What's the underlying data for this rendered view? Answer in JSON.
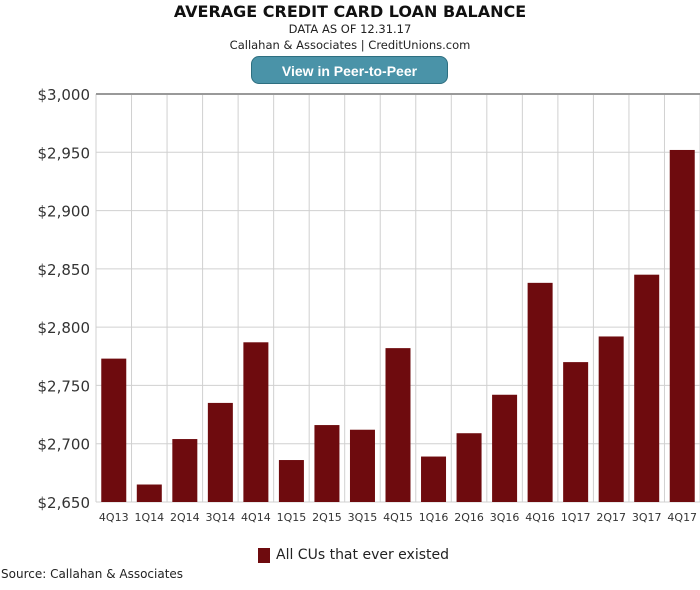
{
  "header": {
    "title": "AVERAGE CREDIT CARD LOAN BALANCE",
    "date_line": "DATA AS OF 12.31.17",
    "credit_line": "Callahan & Associates | CreditUnions.com",
    "button_label": "View in Peer-to-Peer"
  },
  "footer": {
    "source": "Source: Callahan & Associates"
  },
  "chart_data": {
    "type": "bar",
    "title": "AVERAGE CREDIT CARD LOAN BALANCE",
    "xlabel": "",
    "ylabel": "",
    "ylim": [
      2650,
      3000
    ],
    "yticks": [
      2650,
      2700,
      2750,
      2800,
      2850,
      2900,
      2950,
      3000
    ],
    "ytick_labels": [
      "$2,650",
      "$2,700",
      "$2,750",
      "$2,800",
      "$2,850",
      "$2,900",
      "$2,950",
      "$3,000"
    ],
    "categories": [
      "4Q13",
      "1Q14",
      "2Q14",
      "3Q14",
      "4Q14",
      "1Q15",
      "2Q15",
      "3Q15",
      "4Q15",
      "1Q16",
      "2Q16",
      "3Q16",
      "4Q16",
      "1Q17",
      "2Q17",
      "3Q17",
      "4Q17"
    ],
    "series": [
      {
        "name": "All CUs that ever existed",
        "color": "#6e0b0e",
        "values": [
          2773,
          2665,
          2704,
          2735,
          2787,
          2686,
          2716,
          2712,
          2782,
          2689,
          2709,
          2742,
          2838,
          2770,
          2792,
          2845,
          2952
        ]
      }
    ],
    "grid": true,
    "legend": "bottom-center"
  }
}
